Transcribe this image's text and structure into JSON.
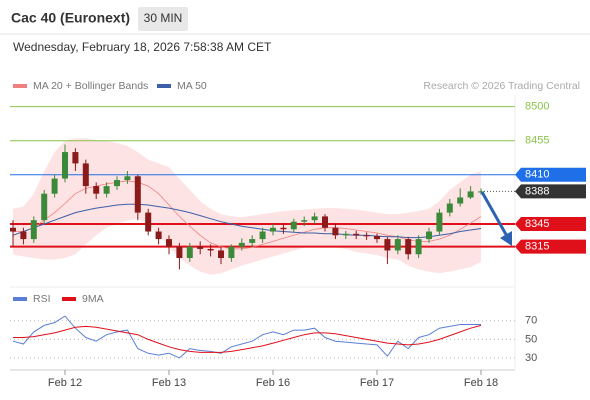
{
  "header": {
    "title": "Cac 40 (Euronext)",
    "timeframe": "30 MIN",
    "datetime": "Wednesday, February 18, 2026 7:58:38 AM CET",
    "copyright": "Research © 2026 Trading Central"
  },
  "chart_data": [
    {
      "type": "candlestick",
      "categories": [
        null,
        null,
        null,
        null,
        null,
        "Feb 12",
        null,
        null,
        null,
        null,
        null,
        null,
        null,
        null,
        null,
        "Feb 13",
        null,
        null,
        null,
        null,
        null,
        null,
        null,
        null,
        null,
        "Feb 16",
        null,
        null,
        null,
        null,
        null,
        null,
        null,
        null,
        null,
        "Feb 17",
        null,
        null,
        null,
        null,
        null,
        null,
        null,
        null,
        null,
        "Feb 18"
      ],
      "open": [
        8340,
        8335,
        8325,
        8350,
        8385,
        8405,
        8440,
        8425,
        8395,
        8385,
        8395,
        8403,
        8408,
        8360,
        8335,
        8325,
        8315,
        8300,
        8315,
        8312,
        8310,
        8300,
        8315,
        8320,
        8325,
        8335,
        8340,
        8338,
        8348,
        8350,
        8355,
        8340,
        8330,
        8332,
        8330,
        8329,
        8325,
        8310,
        8325,
        8305,
        8325,
        8335,
        8360,
        8372,
        8380,
        8387
      ],
      "high": [
        8350,
        8340,
        8355,
        8390,
        8410,
        8450,
        8445,
        8430,
        8400,
        8400,
        8408,
        8415,
        8410,
        8365,
        8340,
        8330,
        8320,
        8320,
        8322,
        8318,
        8315,
        8318,
        8326,
        8330,
        8340,
        8345,
        8346,
        8352,
        8355,
        8360,
        8358,
        8345,
        8336,
        8336,
        8334,
        8332,
        8328,
        8330,
        8328,
        8330,
        8340,
        8365,
        8378,
        8392,
        8395,
        8392
      ],
      "low": [
        8315,
        8318,
        8320,
        8345,
        8380,
        8400,
        8415,
        8385,
        8378,
        8380,
        8390,
        8398,
        8350,
        8330,
        8318,
        8305,
        8285,
        8295,
        8305,
        8302,
        8292,
        8295,
        8310,
        8315,
        8320,
        8330,
        8332,
        8334,
        8342,
        8345,
        8335,
        8325,
        8325,
        8325,
        8324,
        8320,
        8292,
        8305,
        8298,
        8300,
        8320,
        8330,
        8355,
        8368,
        8378,
        8384
      ],
      "close": [
        8335,
        8325,
        8350,
        8385,
        8405,
        8440,
        8425,
        8395,
        8385,
        8395,
        8403,
        8408,
        8360,
        8335,
        8325,
        8315,
        8300,
        8315,
        8312,
        8310,
        8300,
        8315,
        8320,
        8325,
        8335,
        8340,
        8338,
        8348,
        8350,
        8355,
        8340,
        8330,
        8332,
        8330,
        8329,
        8325,
        8310,
        8325,
        8305,
        8325,
        8335,
        8360,
        8372,
        8380,
        8388,
        8388
      ],
      "up_color": "#3a8a3a",
      "down_color": "#8b1a1a",
      "series": [
        {
          "name": "MA 20 + Bollinger Bands",
          "color": "#f08080",
          "values": [
            8335,
            8335,
            8340,
            8350,
            8360,
            8372,
            8385,
            8392,
            8395,
            8398,
            8400,
            8402,
            8400,
            8395,
            8385,
            8370,
            8355,
            8342,
            8330,
            8320,
            8315,
            8312,
            8312,
            8314,
            8318,
            8322,
            8326,
            8330,
            8334,
            8338,
            8340,
            8340,
            8339,
            8337,
            8335,
            8333,
            8330,
            8328,
            8324,
            8322,
            8322,
            8325,
            8330,
            8338,
            8346,
            8355
          ],
          "upper": [
            8365,
            8368,
            8385,
            8415,
            8440,
            8455,
            8458,
            8458,
            8456,
            8455,
            8452,
            8448,
            8440,
            8430,
            8425,
            8420,
            8405,
            8390,
            8375,
            8365,
            8358,
            8355,
            8354,
            8356,
            8358,
            8360,
            8362,
            8363,
            8364,
            8365,
            8366,
            8366,
            8365,
            8364,
            8362,
            8360,
            8358,
            8358,
            8360,
            8362,
            8365,
            8375,
            8390,
            8400,
            8410,
            8415
          ],
          "lower": [
            8305,
            8302,
            8300,
            8298,
            8298,
            8300,
            8305,
            8318,
            8330,
            8340,
            8345,
            8350,
            8352,
            8345,
            8330,
            8315,
            8300,
            8290,
            8282,
            8278,
            8280,
            8285,
            8290,
            8294,
            8298,
            8302,
            8306,
            8310,
            8314,
            8316,
            8316,
            8314,
            8312,
            8308,
            8306,
            8304,
            8300,
            8298,
            8290,
            8285,
            8282,
            8280,
            8282,
            8285,
            8288,
            8295
          ],
          "band_color": "#fde3e3"
        },
        {
          "name": "MA 50",
          "color": "#3b5fa8",
          "values": [
            8330,
            8335,
            8340,
            8345,
            8350,
            8355,
            8360,
            8363,
            8366,
            8368,
            8370,
            8371,
            8371,
            8370,
            8368,
            8366,
            8363,
            8360,
            8356,
            8352,
            8348,
            8345,
            8342,
            8340,
            8338,
            8336,
            8335,
            8334,
            8333,
            8333,
            8332,
            8332,
            8331,
            8330,
            8330,
            8329,
            8328,
            8328,
            8327,
            8327,
            8328,
            8330,
            8332,
            8335,
            8337,
            8339
          ]
        }
      ],
      "levels": [
        {
          "value": 8500,
          "color": "#8bc34a",
          "style": "text"
        },
        {
          "value": 8455,
          "color": "#8bc34a",
          "style": "text"
        },
        {
          "value": 8410,
          "color": "#1e6fe8",
          "style": "box"
        },
        {
          "value": 8388,
          "color": "#333333",
          "style": "current"
        },
        {
          "value": 8345,
          "color": "#e0101a",
          "style": "box"
        },
        {
          "value": 8315,
          "color": "#e0101a",
          "style": "box"
        }
      ],
      "ylim": [
        8267,
        8522
      ]
    },
    {
      "type": "line",
      "series": [
        {
          "name": "RSI",
          "color": "#5b7fd6",
          "values": [
            48,
            45,
            58,
            65,
            68,
            75,
            62,
            52,
            48,
            55,
            58,
            60,
            40,
            35,
            33,
            35,
            30,
            40,
            38,
            37,
            35,
            42,
            45,
            48,
            55,
            58,
            55,
            60,
            60,
            62,
            52,
            48,
            47,
            46,
            45,
            44,
            32,
            48,
            40,
            52,
            55,
            62,
            64,
            66,
            66,
            66
          ]
        },
        {
          "name": "9MA",
          "color": "#e0101a",
          "values": [
            52,
            52,
            53,
            55,
            57,
            60,
            63,
            64,
            63,
            61,
            59,
            57,
            55,
            50,
            46,
            42,
            39,
            37,
            36,
            36,
            36,
            37,
            39,
            41,
            43,
            46,
            49,
            52,
            55,
            57,
            57,
            56,
            54,
            52,
            50,
            48,
            46,
            45,
            44,
            45,
            47,
            50,
            54,
            58,
            62,
            65
          ]
        }
      ],
      "ylim": [
        17,
        87
      ],
      "yticks": [
        70,
        50,
        30
      ]
    }
  ]
}
